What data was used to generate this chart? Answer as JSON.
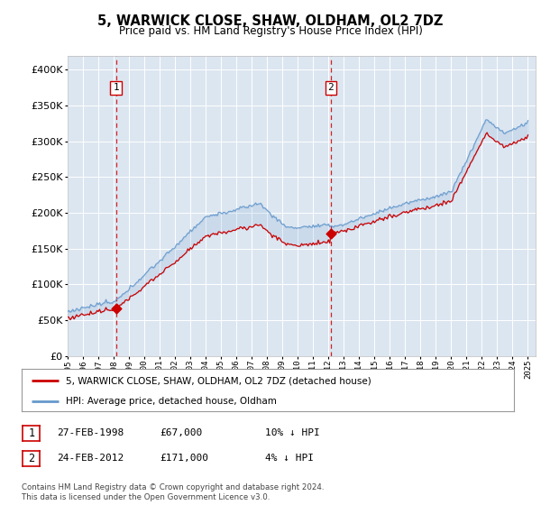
{
  "title": "5, WARWICK CLOSE, SHAW, OLDHAM, OL2 7DZ",
  "subtitle": "Price paid vs. HM Land Registry's House Price Index (HPI)",
  "legend_label_red": "5, WARWICK CLOSE, SHAW, OLDHAM, OL2 7DZ (detached house)",
  "legend_label_blue": "HPI: Average price, detached house, Oldham",
  "sale1_date": "27-FEB-1998",
  "sale1_price": 67000,
  "sale1_note": "10% ↓ HPI",
  "sale2_date": "24-FEB-2012",
  "sale2_price": 171000,
  "sale2_note": "4% ↓ HPI",
  "footer": "Contains HM Land Registry data © Crown copyright and database right 2024.\nThis data is licensed under the Open Government Licence v3.0.",
  "plot_bg_color": "#dce6f1",
  "ylim": [
    0,
    420000
  ],
  "yticks": [
    0,
    50000,
    100000,
    150000,
    200000,
    250000,
    300000,
    350000,
    400000
  ],
  "red_color": "#cc0000",
  "blue_color": "#6699cc",
  "vline_color": "#cc0000",
  "sale1_year": 1998.15,
  "sale2_year": 2012.15,
  "xmin": 1995.0,
  "xmax": 2025.5
}
